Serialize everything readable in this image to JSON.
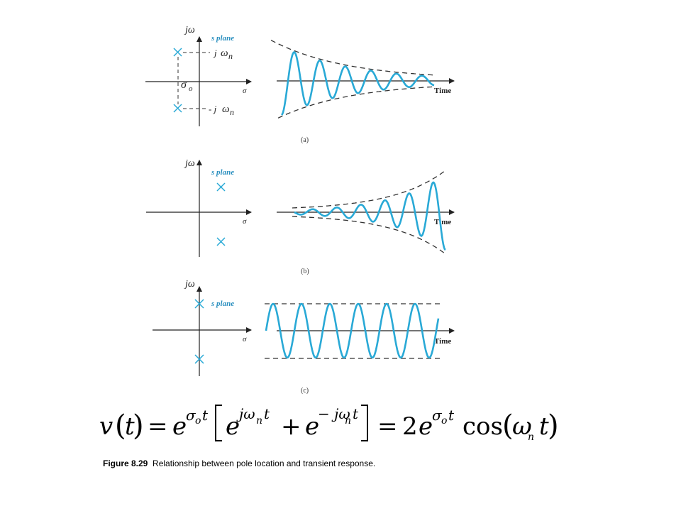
{
  "panels": [
    {
      "id": "a",
      "label": "(a)",
      "axis_v": "jω",
      "axis_h": "σ",
      "plane": "s plane",
      "upper_pole_label_j": "j",
      "upper_pole_label_w": "ω",
      "upper_pole_label_n": "n",
      "lower_pole_label_j": "- j",
      "lower_pole_label_w": "ω",
      "lower_pole_label_n": "n",
      "sigma_label": "σ",
      "sigma_sub": "o",
      "time_label": "Time",
      "response": "decaying"
    },
    {
      "id": "b",
      "label": "(b)",
      "axis_v": "jω",
      "axis_h": "σ",
      "plane": "s plane",
      "time_label": "Time",
      "response": "growing"
    },
    {
      "id": "c",
      "label": "(c)",
      "axis_v": "jω",
      "axis_h": "σ",
      "plane": "s plane",
      "time_label": "Time",
      "response": "constant"
    }
  ],
  "equation": {
    "v": "v",
    "t": "t",
    "eq1": "=",
    "e": "e",
    "sigma": "σ",
    "o": "o",
    "jomega": "jω",
    "n": "n",
    "plus": "+",
    "minus_jomega": "− jω",
    "eq2": "=",
    "two": "2",
    "cos": "cos",
    "omega": "ω"
  },
  "caption": {
    "bold": "Figure 8.29",
    "text": "Relationship between pole location and transient response."
  },
  "colors": {
    "wave": "#29a9d6",
    "axes": "#222222"
  }
}
